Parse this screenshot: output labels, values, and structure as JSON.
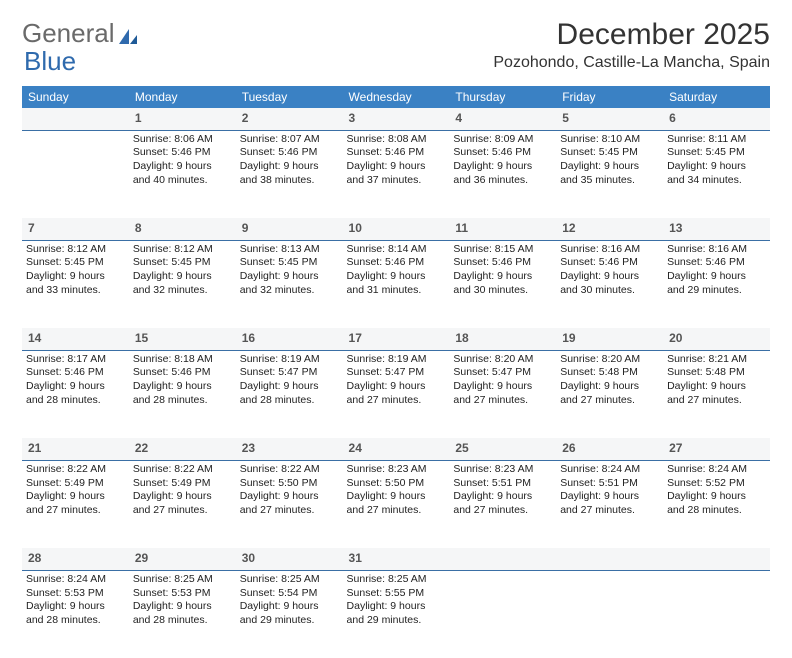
{
  "brand": {
    "general": "General",
    "blue": "Blue"
  },
  "title": "December 2025",
  "location": "Pozohondo, Castille-La Mancha, Spain",
  "colors": {
    "header_bg": "#3a81c4",
    "header_text": "#ffffff",
    "daynum_bg": "#f5f6f7",
    "daynum_border": "#3a6fa5",
    "text": "#222222",
    "logo_gray": "#6a6a6a",
    "logo_blue": "#2f6aad"
  },
  "weekdays": [
    "Sunday",
    "Monday",
    "Tuesday",
    "Wednesday",
    "Thursday",
    "Friday",
    "Saturday"
  ],
  "weeks": [
    {
      "nums": [
        "",
        "1",
        "2",
        "3",
        "4",
        "5",
        "6"
      ],
      "cells": [
        null,
        {
          "sunrise": "Sunrise: 8:06 AM",
          "sunset": "Sunset: 5:46 PM",
          "daylight": "Daylight: 9 hours and 40 minutes."
        },
        {
          "sunrise": "Sunrise: 8:07 AM",
          "sunset": "Sunset: 5:46 PM",
          "daylight": "Daylight: 9 hours and 38 minutes."
        },
        {
          "sunrise": "Sunrise: 8:08 AM",
          "sunset": "Sunset: 5:46 PM",
          "daylight": "Daylight: 9 hours and 37 minutes."
        },
        {
          "sunrise": "Sunrise: 8:09 AM",
          "sunset": "Sunset: 5:46 PM",
          "daylight": "Daylight: 9 hours and 36 minutes."
        },
        {
          "sunrise": "Sunrise: 8:10 AM",
          "sunset": "Sunset: 5:45 PM",
          "daylight": "Daylight: 9 hours and 35 minutes."
        },
        {
          "sunrise": "Sunrise: 8:11 AM",
          "sunset": "Sunset: 5:45 PM",
          "daylight": "Daylight: 9 hours and 34 minutes."
        }
      ]
    },
    {
      "nums": [
        "7",
        "8",
        "9",
        "10",
        "11",
        "12",
        "13"
      ],
      "cells": [
        {
          "sunrise": "Sunrise: 8:12 AM",
          "sunset": "Sunset: 5:45 PM",
          "daylight": "Daylight: 9 hours and 33 minutes."
        },
        {
          "sunrise": "Sunrise: 8:12 AM",
          "sunset": "Sunset: 5:45 PM",
          "daylight": "Daylight: 9 hours and 32 minutes."
        },
        {
          "sunrise": "Sunrise: 8:13 AM",
          "sunset": "Sunset: 5:45 PM",
          "daylight": "Daylight: 9 hours and 32 minutes."
        },
        {
          "sunrise": "Sunrise: 8:14 AM",
          "sunset": "Sunset: 5:46 PM",
          "daylight": "Daylight: 9 hours and 31 minutes."
        },
        {
          "sunrise": "Sunrise: 8:15 AM",
          "sunset": "Sunset: 5:46 PM",
          "daylight": "Daylight: 9 hours and 30 minutes."
        },
        {
          "sunrise": "Sunrise: 8:16 AM",
          "sunset": "Sunset: 5:46 PM",
          "daylight": "Daylight: 9 hours and 30 minutes."
        },
        {
          "sunrise": "Sunrise: 8:16 AM",
          "sunset": "Sunset: 5:46 PM",
          "daylight": "Daylight: 9 hours and 29 minutes."
        }
      ]
    },
    {
      "nums": [
        "14",
        "15",
        "16",
        "17",
        "18",
        "19",
        "20"
      ],
      "cells": [
        {
          "sunrise": "Sunrise: 8:17 AM",
          "sunset": "Sunset: 5:46 PM",
          "daylight": "Daylight: 9 hours and 28 minutes."
        },
        {
          "sunrise": "Sunrise: 8:18 AM",
          "sunset": "Sunset: 5:46 PM",
          "daylight": "Daylight: 9 hours and 28 minutes."
        },
        {
          "sunrise": "Sunrise: 8:19 AM",
          "sunset": "Sunset: 5:47 PM",
          "daylight": "Daylight: 9 hours and 28 minutes."
        },
        {
          "sunrise": "Sunrise: 8:19 AM",
          "sunset": "Sunset: 5:47 PM",
          "daylight": "Daylight: 9 hours and 27 minutes."
        },
        {
          "sunrise": "Sunrise: 8:20 AM",
          "sunset": "Sunset: 5:47 PM",
          "daylight": "Daylight: 9 hours and 27 minutes."
        },
        {
          "sunrise": "Sunrise: 8:20 AM",
          "sunset": "Sunset: 5:48 PM",
          "daylight": "Daylight: 9 hours and 27 minutes."
        },
        {
          "sunrise": "Sunrise: 8:21 AM",
          "sunset": "Sunset: 5:48 PM",
          "daylight": "Daylight: 9 hours and 27 minutes."
        }
      ]
    },
    {
      "nums": [
        "21",
        "22",
        "23",
        "24",
        "25",
        "26",
        "27"
      ],
      "cells": [
        {
          "sunrise": "Sunrise: 8:22 AM",
          "sunset": "Sunset: 5:49 PM",
          "daylight": "Daylight: 9 hours and 27 minutes."
        },
        {
          "sunrise": "Sunrise: 8:22 AM",
          "sunset": "Sunset: 5:49 PM",
          "daylight": "Daylight: 9 hours and 27 minutes."
        },
        {
          "sunrise": "Sunrise: 8:22 AM",
          "sunset": "Sunset: 5:50 PM",
          "daylight": "Daylight: 9 hours and 27 minutes."
        },
        {
          "sunrise": "Sunrise: 8:23 AM",
          "sunset": "Sunset: 5:50 PM",
          "daylight": "Daylight: 9 hours and 27 minutes."
        },
        {
          "sunrise": "Sunrise: 8:23 AM",
          "sunset": "Sunset: 5:51 PM",
          "daylight": "Daylight: 9 hours and 27 minutes."
        },
        {
          "sunrise": "Sunrise: 8:24 AM",
          "sunset": "Sunset: 5:51 PM",
          "daylight": "Daylight: 9 hours and 27 minutes."
        },
        {
          "sunrise": "Sunrise: 8:24 AM",
          "sunset": "Sunset: 5:52 PM",
          "daylight": "Daylight: 9 hours and 28 minutes."
        }
      ]
    },
    {
      "nums": [
        "28",
        "29",
        "30",
        "31",
        "",
        "",
        ""
      ],
      "cells": [
        {
          "sunrise": "Sunrise: 8:24 AM",
          "sunset": "Sunset: 5:53 PM",
          "daylight": "Daylight: 9 hours and 28 minutes."
        },
        {
          "sunrise": "Sunrise: 8:25 AM",
          "sunset": "Sunset: 5:53 PM",
          "daylight": "Daylight: 9 hours and 28 minutes."
        },
        {
          "sunrise": "Sunrise: 8:25 AM",
          "sunset": "Sunset: 5:54 PM",
          "daylight": "Daylight: 9 hours and 29 minutes."
        },
        {
          "sunrise": "Sunrise: 8:25 AM",
          "sunset": "Sunset: 5:55 PM",
          "daylight": "Daylight: 9 hours and 29 minutes."
        },
        null,
        null,
        null
      ]
    }
  ]
}
